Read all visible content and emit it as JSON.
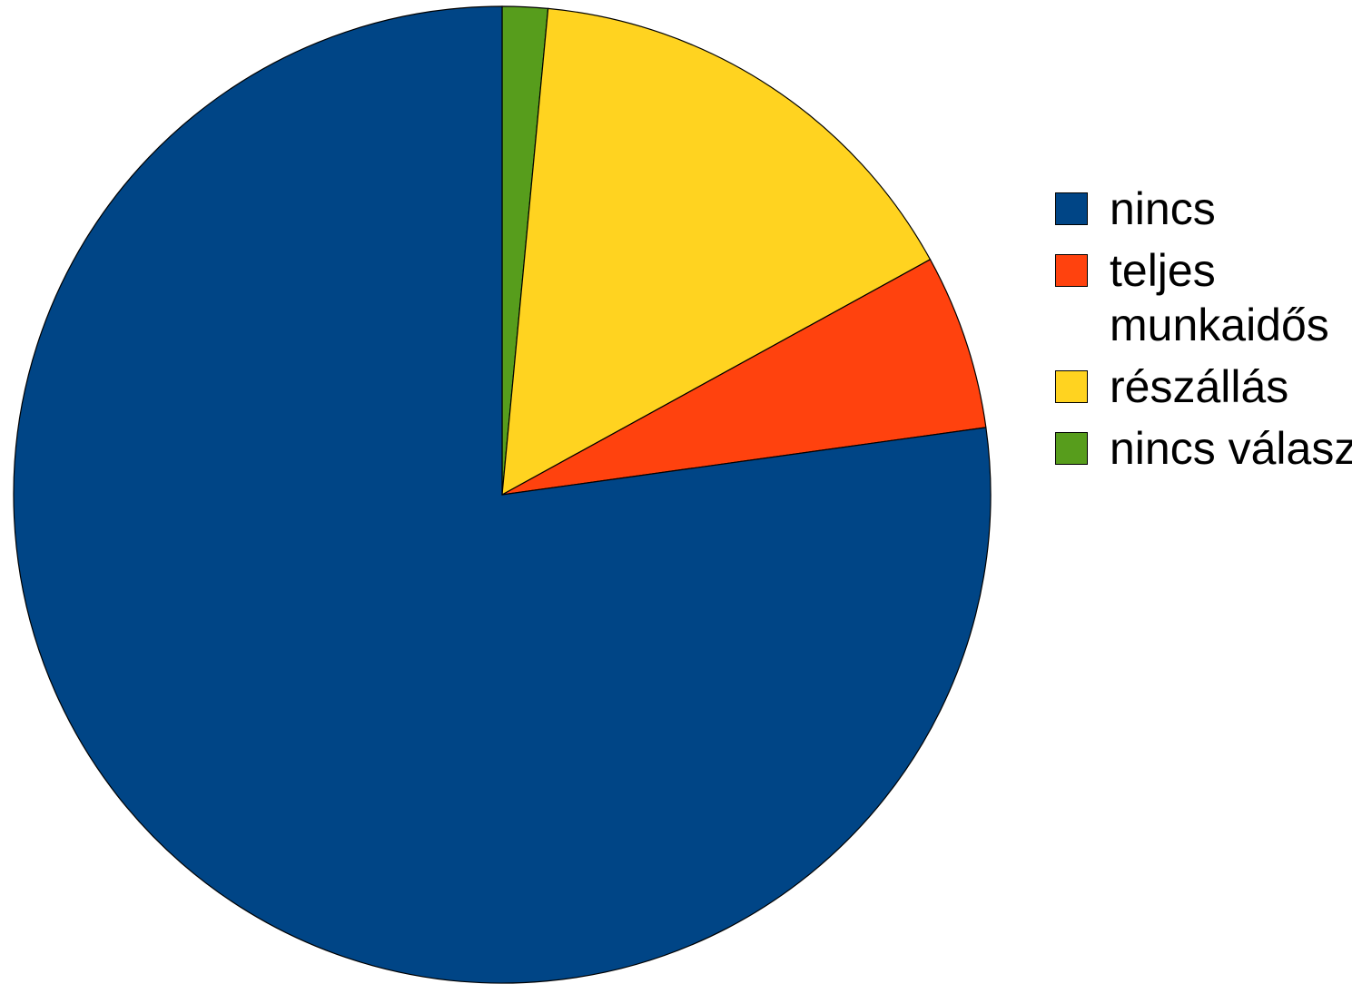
{
  "chart_data": {
    "type": "pie",
    "title": "",
    "start_angle": "12 o'clock, clockwise",
    "legend_position": "right",
    "slices": [
      {
        "label": "nincs vá­lasz",
        "value": 1.5,
        "color": "#579d1c"
      },
      {
        "label": "részállás",
        "value": 15.5,
        "color": "#ffd320"
      },
      {
        "label": "teljes munkaidős",
        "value": 5.8,
        "color": "#ff420e"
      },
      {
        "label": "nincs",
        "value": 77.2,
        "color": "#004586"
      }
    ],
    "legend": [
      {
        "label": "nincs",
        "color": "#004586"
      },
      {
        "label": "teljes munkaidős",
        "color": "#ff420e"
      },
      {
        "label": "részállás",
        "color": "#ffd320"
      },
      {
        "label": "nincs vá­lasz",
        "color": "#579d1c"
      }
    ]
  }
}
